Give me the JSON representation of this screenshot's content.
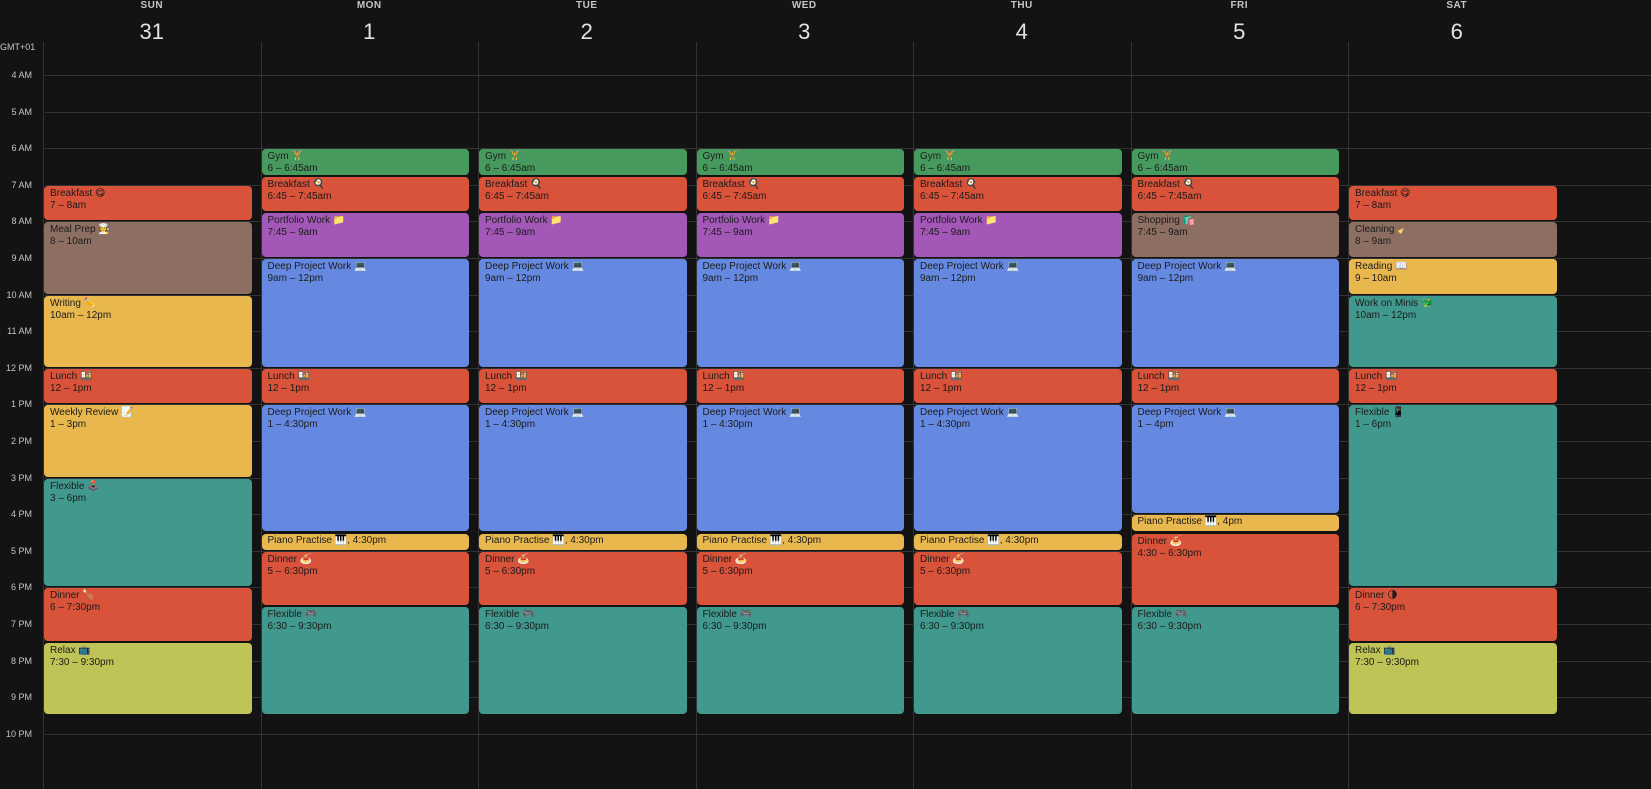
{
  "timezone": "GMT+01",
  "hours": [
    "4 AM",
    "5 AM",
    "6 AM",
    "7 AM",
    "8 AM",
    "9 AM",
    "10 AM",
    "11 AM",
    "12 PM",
    "1 PM",
    "2 PM",
    "3 PM",
    "4 PM",
    "5 PM",
    "6 PM",
    "7 PM",
    "8 PM",
    "9 PM",
    "10 PM"
  ],
  "days": [
    {
      "dow": "SUN",
      "num": "31",
      "events": [
        {
          "title": "Breakfast 😋",
          "time": "7 – 8am",
          "start": 7,
          "end": 8,
          "color": "#d9523a"
        },
        {
          "title": "Meal Prep 🧑‍🍳",
          "time": "8 – 10am",
          "start": 8,
          "end": 10,
          "color": "#8d6e63"
        },
        {
          "title": "Writing ✏️",
          "time": "10am – 12pm",
          "start": 10,
          "end": 12,
          "color": "#e8b84f"
        },
        {
          "title": "Lunch 🍱",
          "time": "12 – 1pm",
          "start": 12,
          "end": 13,
          "color": "#d9523a"
        },
        {
          "title": "Weekly Review 📝",
          "time": "1 – 3pm",
          "start": 13,
          "end": 15,
          "color": "#e8b84f"
        },
        {
          "title": "Flexible 🕹️",
          "time": "3 – 6pm",
          "start": 15,
          "end": 18,
          "color": "#41998d"
        },
        {
          "title": "Dinner 🍗",
          "time": "6 – 7:30pm",
          "start": 18,
          "end": 19.5,
          "color": "#d9523a"
        },
        {
          "title": "Relax 📺",
          "time": "7:30 – 9:30pm",
          "start": 19.5,
          "end": 21.5,
          "color": "#c0c356"
        }
      ]
    },
    {
      "dow": "MON",
      "num": "1",
      "events": [
        {
          "title": "Gym 🏋️",
          "time": "6 – 6:45am",
          "start": 6,
          "end": 6.75,
          "color": "#479a5e"
        },
        {
          "title": "Breakfast 🍳",
          "time": "6:45 – 7:45am",
          "start": 6.75,
          "end": 7.75,
          "color": "#d9523a"
        },
        {
          "title": "Portfolio Work 📁",
          "time": "7:45 – 9am",
          "start": 7.75,
          "end": 9,
          "color": "#a358b8"
        },
        {
          "title": "Deep Project Work 💻",
          "time": "9am – 12pm",
          "start": 9,
          "end": 12,
          "color": "#6589e0"
        },
        {
          "title": "Lunch 🍱",
          "time": "12 – 1pm",
          "start": 12,
          "end": 13,
          "color": "#d9523a"
        },
        {
          "title": "Deep Project Work 💻",
          "time": "1 – 4:30pm",
          "start": 13,
          "end": 16.5,
          "color": "#6589e0"
        },
        {
          "title": "Piano Practise 🎹",
          "time": ", 4:30pm",
          "start": 16.5,
          "end": 17,
          "color": "#e8b84f",
          "short": true
        },
        {
          "title": "Dinner 🍝",
          "time": "5 – 6:30pm",
          "start": 17,
          "end": 18.5,
          "color": "#d9523a"
        },
        {
          "title": "Flexible 🎮",
          "time": "6:30 – 9:30pm",
          "start": 18.5,
          "end": 21.5,
          "color": "#41998d"
        }
      ]
    },
    {
      "dow": "TUE",
      "num": "2",
      "events": [
        {
          "title": "Gym 🏋️",
          "time": "6 – 6:45am",
          "start": 6,
          "end": 6.75,
          "color": "#479a5e"
        },
        {
          "title": "Breakfast 🍳",
          "time": "6:45 – 7:45am",
          "start": 6.75,
          "end": 7.75,
          "color": "#d9523a"
        },
        {
          "title": "Portfolio Work 📁",
          "time": "7:45 – 9am",
          "start": 7.75,
          "end": 9,
          "color": "#a358b8"
        },
        {
          "title": "Deep Project Work 💻",
          "time": "9am – 12pm",
          "start": 9,
          "end": 12,
          "color": "#6589e0"
        },
        {
          "title": "Lunch 🍱",
          "time": "12 – 1pm",
          "start": 12,
          "end": 13,
          "color": "#d9523a"
        },
        {
          "title": "Deep Project Work 💻",
          "time": "1 – 4:30pm",
          "start": 13,
          "end": 16.5,
          "color": "#6589e0"
        },
        {
          "title": "Piano Practise 🎹",
          "time": ", 4:30pm",
          "start": 16.5,
          "end": 17,
          "color": "#e8b84f",
          "short": true
        },
        {
          "title": "Dinner 🍝",
          "time": "5 – 6:30pm",
          "start": 17,
          "end": 18.5,
          "color": "#d9523a"
        },
        {
          "title": "Flexible 🎮",
          "time": "6:30 – 9:30pm",
          "start": 18.5,
          "end": 21.5,
          "color": "#41998d"
        }
      ]
    },
    {
      "dow": "WED",
      "num": "3",
      "events": [
        {
          "title": "Gym 🏋️",
          "time": "6 – 6:45am",
          "start": 6,
          "end": 6.75,
          "color": "#479a5e"
        },
        {
          "title": "Breakfast 🍳",
          "time": "6:45 – 7:45am",
          "start": 6.75,
          "end": 7.75,
          "color": "#d9523a"
        },
        {
          "title": "Portfolio Work 📁",
          "time": "7:45 – 9am",
          "start": 7.75,
          "end": 9,
          "color": "#a358b8"
        },
        {
          "title": "Deep Project Work 💻",
          "time": "9am – 12pm",
          "start": 9,
          "end": 12,
          "color": "#6589e0"
        },
        {
          "title": "Lunch 🍱",
          "time": "12 – 1pm",
          "start": 12,
          "end": 13,
          "color": "#d9523a"
        },
        {
          "title": "Deep Project Work 💻",
          "time": "1 – 4:30pm",
          "start": 13,
          "end": 16.5,
          "color": "#6589e0"
        },
        {
          "title": "Piano Practise 🎹",
          "time": ", 4:30pm",
          "start": 16.5,
          "end": 17,
          "color": "#e8b84f",
          "short": true
        },
        {
          "title": "Dinner 🍝",
          "time": "5 – 6:30pm",
          "start": 17,
          "end": 18.5,
          "color": "#d9523a"
        },
        {
          "title": "Flexible 🎮",
          "time": "6:30 – 9:30pm",
          "start": 18.5,
          "end": 21.5,
          "color": "#41998d"
        }
      ]
    },
    {
      "dow": "THU",
      "num": "4",
      "events": [
        {
          "title": "Gym 🏋️",
          "time": "6 – 6:45am",
          "start": 6,
          "end": 6.75,
          "color": "#479a5e"
        },
        {
          "title": "Breakfast 🍳",
          "time": "6:45 – 7:45am",
          "start": 6.75,
          "end": 7.75,
          "color": "#d9523a"
        },
        {
          "title": "Portfolio Work 📁",
          "time": "7:45 – 9am",
          "start": 7.75,
          "end": 9,
          "color": "#a358b8"
        },
        {
          "title": "Deep Project Work 💻",
          "time": "9am – 12pm",
          "start": 9,
          "end": 12,
          "color": "#6589e0"
        },
        {
          "title": "Lunch 🍱",
          "time": "12 – 1pm",
          "start": 12,
          "end": 13,
          "color": "#d9523a"
        },
        {
          "title": "Deep Project Work 💻",
          "time": "1 – 4:30pm",
          "start": 13,
          "end": 16.5,
          "color": "#6589e0"
        },
        {
          "title": "Piano Practise 🎹",
          "time": ", 4:30pm",
          "start": 16.5,
          "end": 17,
          "color": "#e8b84f",
          "short": true
        },
        {
          "title": "Dinner 🍝",
          "time": "5 – 6:30pm",
          "start": 17,
          "end": 18.5,
          "color": "#d9523a"
        },
        {
          "title": "Flexible 🎮",
          "time": "6:30 – 9:30pm",
          "start": 18.5,
          "end": 21.5,
          "color": "#41998d"
        }
      ]
    },
    {
      "dow": "FRI",
      "num": "5",
      "events": [
        {
          "title": "Gym 🏋️",
          "time": "6 – 6:45am",
          "start": 6,
          "end": 6.75,
          "color": "#479a5e"
        },
        {
          "title": "Breakfast 🍳",
          "time": "6:45 – 7:45am",
          "start": 6.75,
          "end": 7.75,
          "color": "#d9523a"
        },
        {
          "title": "Shopping 🛍️",
          "time": "7:45 – 9am",
          "start": 7.75,
          "end": 9,
          "color": "#8d6e63"
        },
        {
          "title": "Deep Project Work 💻",
          "time": "9am – 12pm",
          "start": 9,
          "end": 12,
          "color": "#6589e0"
        },
        {
          "title": "Lunch 🍱",
          "time": "12 – 1pm",
          "start": 12,
          "end": 13,
          "color": "#d9523a"
        },
        {
          "title": "Deep Project Work 💻",
          "time": "1 – 4pm",
          "start": 13,
          "end": 16,
          "color": "#6589e0"
        },
        {
          "title": "Piano Practise 🎹",
          "time": ", 4pm",
          "start": 16,
          "end": 16.5,
          "color": "#e8b84f",
          "short": true
        },
        {
          "title": "Dinner 🍝",
          "time": "4:30 – 6:30pm",
          "start": 16.5,
          "end": 18.5,
          "color": "#d9523a"
        },
        {
          "title": "Flexible 🎮",
          "time": "6:30 – 9:30pm",
          "start": 18.5,
          "end": 21.5,
          "color": "#41998d"
        }
      ]
    },
    {
      "dow": "SAT",
      "num": "6",
      "events": [
        {
          "title": "Breakfast 😋",
          "time": "7 – 8am",
          "start": 7,
          "end": 8,
          "color": "#d9523a"
        },
        {
          "title": "Cleaning 🧹",
          "time": "8 – 9am",
          "start": 8,
          "end": 9,
          "color": "#8d6e63"
        },
        {
          "title": "Reading 📖",
          "time": "9 – 10am",
          "start": 9,
          "end": 10,
          "color": "#e8b84f"
        },
        {
          "title": "Work on Minis 🐲",
          "time": "10am – 12pm",
          "start": 10,
          "end": 12,
          "color": "#41998d"
        },
        {
          "title": "Lunch 🍱",
          "time": "12 – 1pm",
          "start": 12,
          "end": 13,
          "color": "#d9523a"
        },
        {
          "title": "Flexible 📱",
          "time": "1 – 6pm",
          "start": 13,
          "end": 18,
          "color": "#41998d"
        },
        {
          "title": "Dinner 🌗",
          "time": "6 – 7:30pm",
          "start": 18,
          "end": 19.5,
          "color": "#d9523a"
        },
        {
          "title": "Relax 📺",
          "time": "7:30 – 9:30pm",
          "start": 19.5,
          "end": 21.5,
          "color": "#c0c356"
        }
      ]
    }
  ]
}
